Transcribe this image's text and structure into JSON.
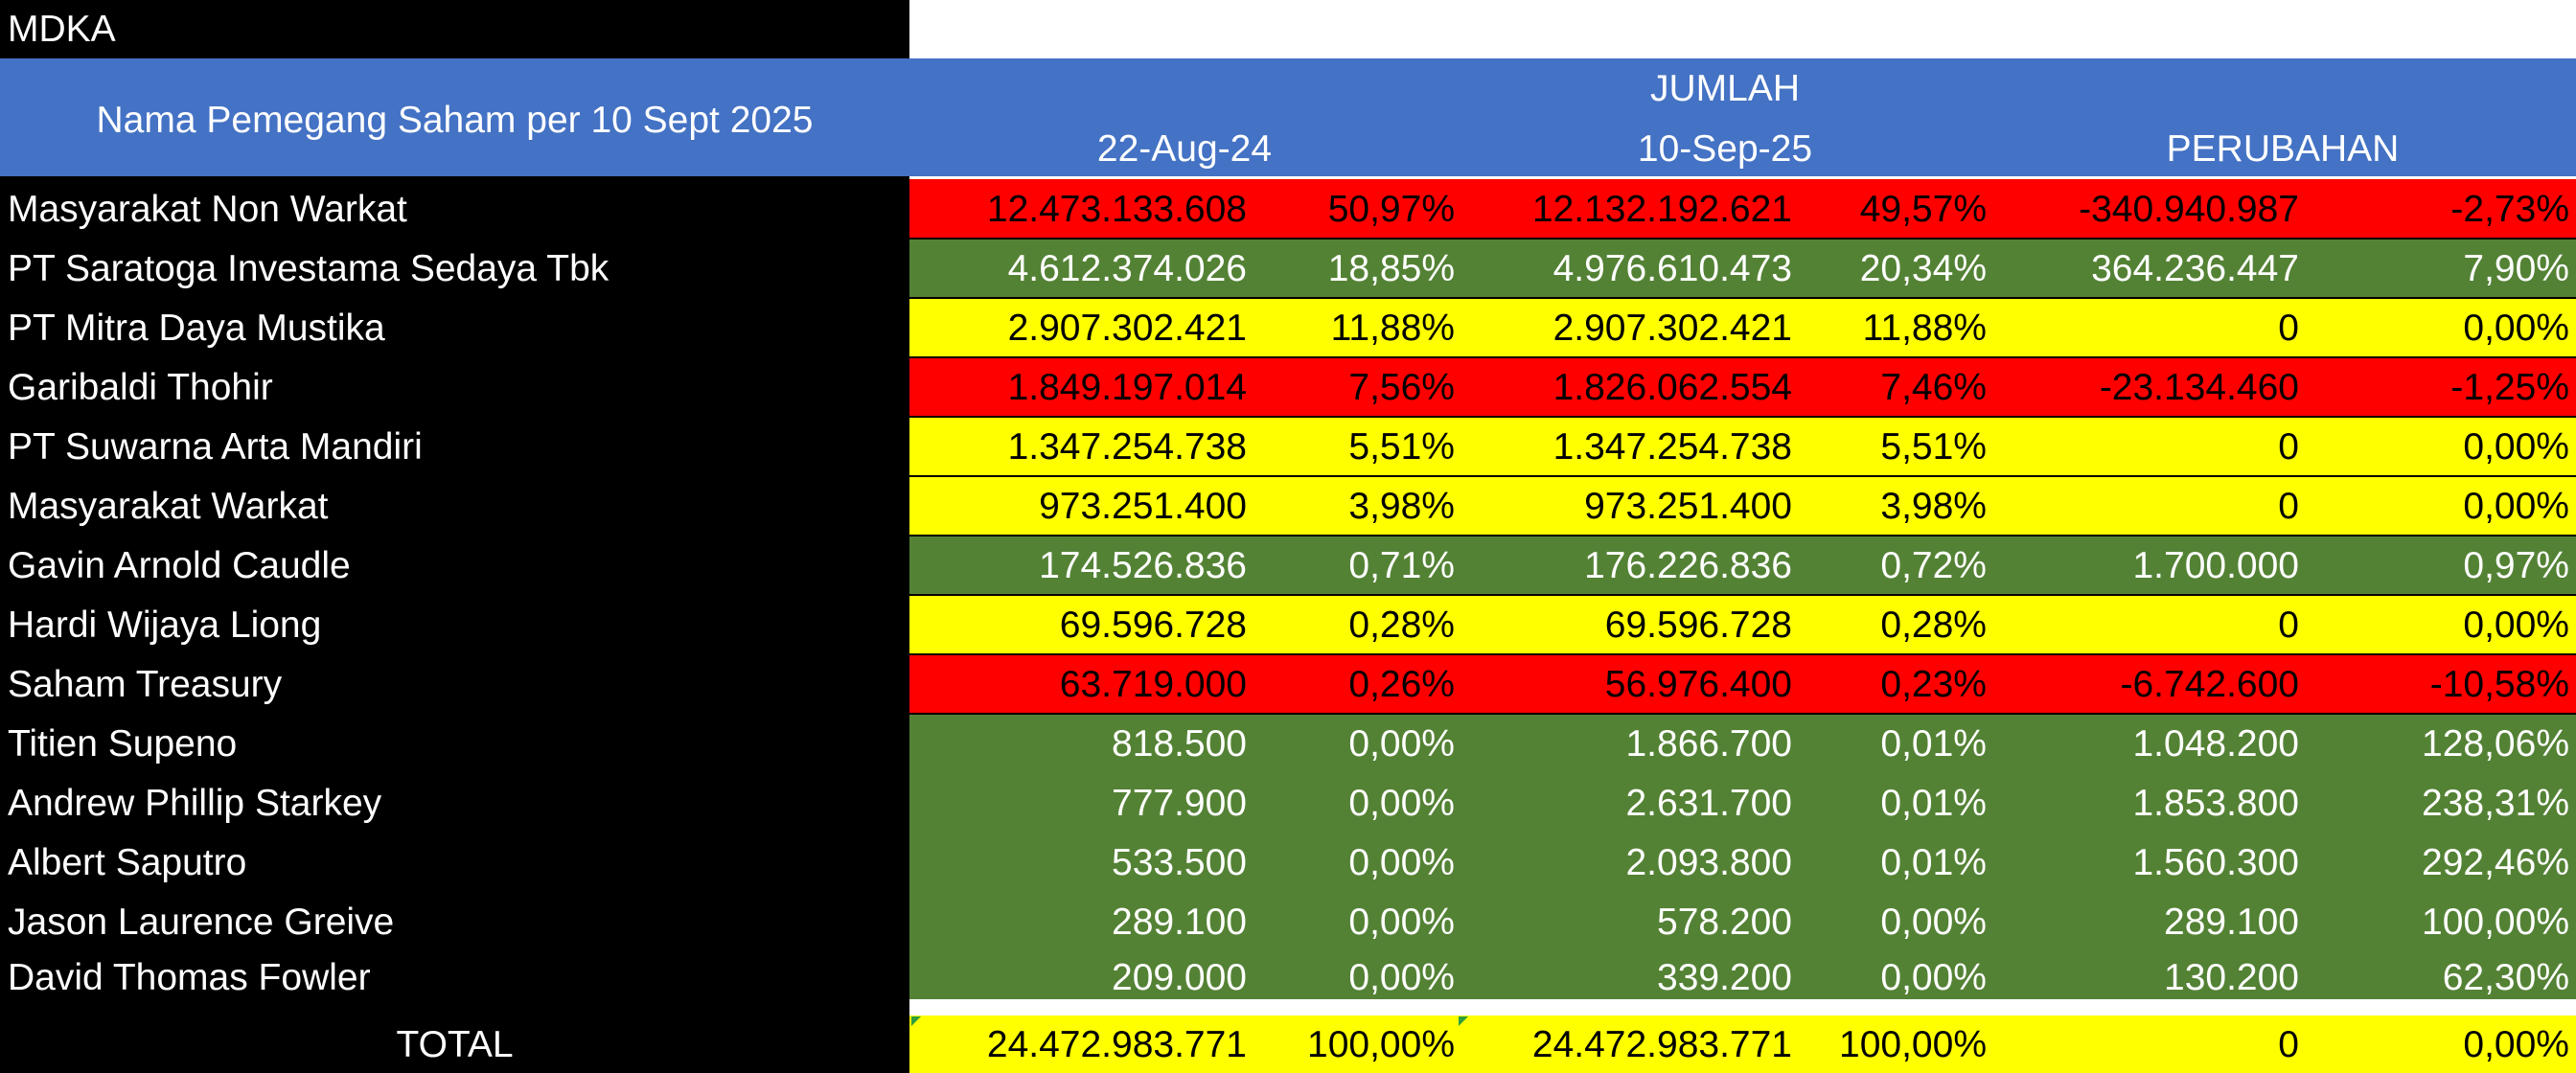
{
  "sheet_label": "MDKA",
  "header": {
    "name_col": "Nama Pemegang Saham per 10 Sept 2025",
    "group": "JUMLAH",
    "date1": "22-Aug-24",
    "date2": "10-Sep-25",
    "change": "PERUBAHAN"
  },
  "colors": {
    "header_blue": "#4472c4",
    "red": "#ff0000",
    "green": "#548235",
    "yellow": "#ffff00"
  },
  "rows": [
    {
      "name": "Masyarakat Non Warkat",
      "v1": "12.473.133.608",
      "p1": "50,97%",
      "v2": "12.132.192.621",
      "p2": "49,57%",
      "chg": "-340.940.987",
      "chgp": "-2,73%",
      "status": "red"
    },
    {
      "name": "PT Saratoga Investama Sedaya Tbk",
      "v1": "4.612.374.026",
      "p1": "18,85%",
      "v2": "4.976.610.473",
      "p2": "20,34%",
      "chg": "364.236.447",
      "chgp": "7,90%",
      "status": "green"
    },
    {
      "name": "PT Mitra Daya Mustika",
      "v1": "2.907.302.421",
      "p1": "11,88%",
      "v2": "2.907.302.421",
      "p2": "11,88%",
      "chg": "0",
      "chgp": "0,00%",
      "status": "yellow"
    },
    {
      "name": "Garibaldi Thohir",
      "v1": "1.849.197.014",
      "p1": "7,56%",
      "v2": "1.826.062.554",
      "p2": "7,46%",
      "chg": "-23.134.460",
      "chgp": "-1,25%",
      "status": "red"
    },
    {
      "name": "PT Suwarna Arta Mandiri",
      "v1": "1.347.254.738",
      "p1": "5,51%",
      "v2": "1.347.254.738",
      "p2": "5,51%",
      "chg": "0",
      "chgp": "0,00%",
      "status": "yellow"
    },
    {
      "name": "Masyarakat Warkat",
      "v1": "973.251.400",
      "p1": "3,98%",
      "v2": "973.251.400",
      "p2": "3,98%",
      "chg": "0",
      "chgp": "0,00%",
      "status": "yellow"
    },
    {
      "name": "Gavin Arnold Caudle",
      "v1": "174.526.836",
      "p1": "0,71%",
      "v2": "176.226.836",
      "p2": "0,72%",
      "chg": "1.700.000",
      "chgp": "0,97%",
      "status": "green"
    },
    {
      "name": "Hardi Wijaya Liong",
      "v1": "69.596.728",
      "p1": "0,28%",
      "v2": "69.596.728",
      "p2": "0,28%",
      "chg": "0",
      "chgp": "0,00%",
      "status": "yellow"
    },
    {
      "name": "Saham Treasury",
      "v1": "63.719.000",
      "p1": "0,26%",
      "v2": "56.976.400",
      "p2": "0,23%",
      "chg": "-6.742.600",
      "chgp": "-10,58%",
      "status": "red"
    },
    {
      "name": "Titien Supeno",
      "v1": "818.500",
      "p1": "0,00%",
      "v2": "1.866.700",
      "p2": "0,01%",
      "chg": "1.048.200",
      "chgp": "128,06%",
      "status": "green"
    },
    {
      "name": "Andrew Phillip Starkey",
      "v1": "777.900",
      "p1": "0,00%",
      "v2": "2.631.700",
      "p2": "0,01%",
      "chg": "1.853.800",
      "chgp": "238,31%",
      "status": "green"
    },
    {
      "name": "Albert Saputro",
      "v1": "533.500",
      "p1": "0,00%",
      "v2": "2.093.800",
      "p2": "0,01%",
      "chg": "1.560.300",
      "chgp": "292,46%",
      "status": "green"
    },
    {
      "name": "Jason Laurence Greive",
      "v1": "289.100",
      "p1": "0,00%",
      "v2": "578.200",
      "p2": "0,00%",
      "chg": "289.100",
      "chgp": "100,00%",
      "status": "green"
    },
    {
      "name": "David Thomas Fowler",
      "v1": "209.000",
      "p1": "0,00%",
      "v2": "339.200",
      "p2": "0,00%",
      "chg": "130.200",
      "chgp": "62,30%",
      "status": "green"
    }
  ],
  "total": {
    "label": "TOTAL",
    "v1": "24.472.983.771",
    "p1": "100,00%",
    "v2": "24.472.983.771",
    "p2": "100,00%",
    "chg": "0",
    "chgp": "0,00%",
    "status": "yellow"
  }
}
